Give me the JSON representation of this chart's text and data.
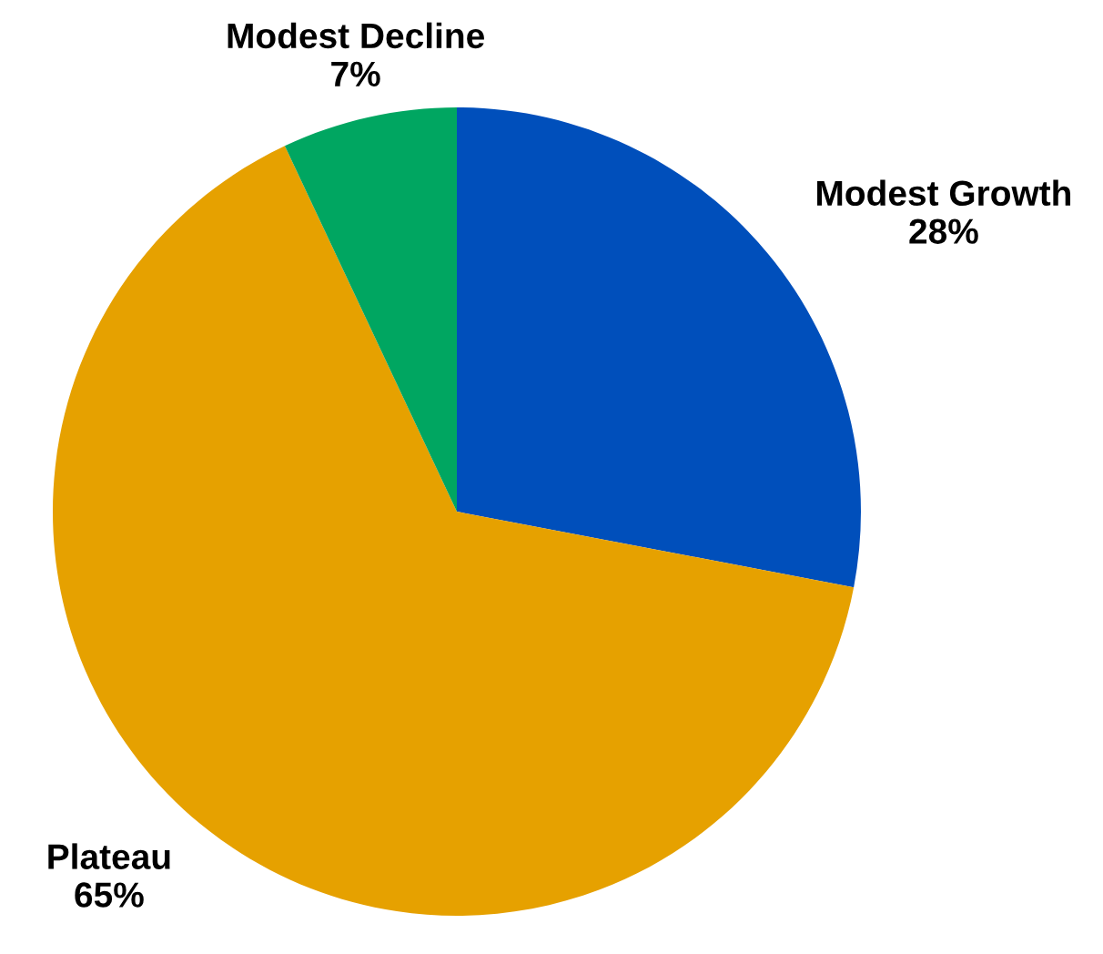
{
  "chart_data": {
    "type": "pie",
    "categories": [
      "Modest Growth",
      "Plateau",
      "Modest Decline"
    ],
    "values": [
      28,
      65,
      7
    ],
    "colors": [
      "#004fbb",
      "#e6a100",
      "#00a661"
    ],
    "value_labels": [
      "28%",
      "65%",
      "7%"
    ]
  }
}
